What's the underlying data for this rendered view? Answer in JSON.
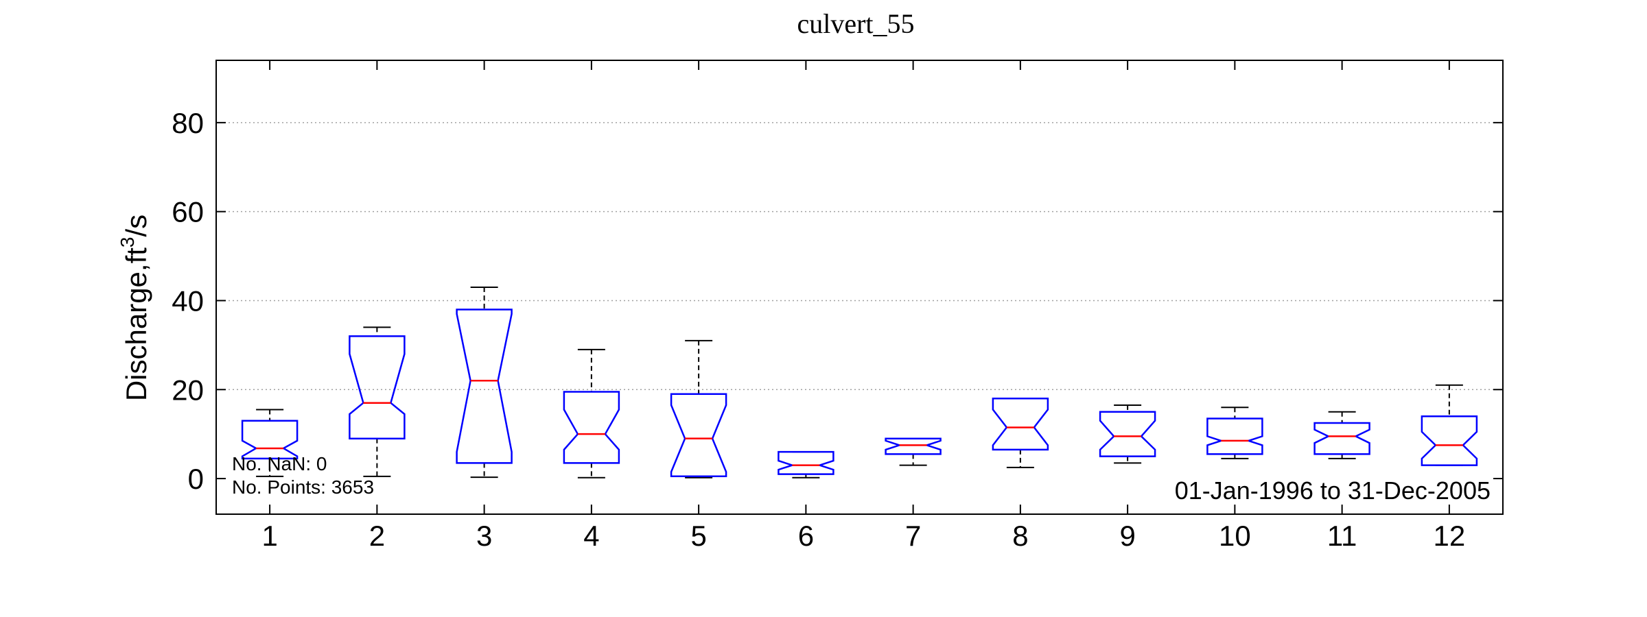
{
  "chart_data": {
    "type": "box",
    "title": "culvert_55",
    "ylabel_main": "Discharge,ft",
    "ylabel_sup": "3",
    "ylabel_tail": "/s",
    "ylim": [
      -8,
      94
    ],
    "yticks": [
      0,
      20,
      40,
      60,
      80
    ],
    "grid": "y-dotted",
    "categories": [
      "1",
      "2",
      "3",
      "4",
      "5",
      "6",
      "7",
      "8",
      "9",
      "10",
      "11",
      "12"
    ],
    "boxes": [
      {
        "min": 0.5,
        "q1": 4.5,
        "notch_lo": 5.0,
        "median": 6.8,
        "notch_hi": 8.5,
        "q3": 13.0,
        "max": 15.5
      },
      {
        "min": 0.5,
        "q1": 9.0,
        "notch_lo": 14.5,
        "median": 17.0,
        "notch_hi": 28.0,
        "q3": 32.0,
        "max": 34.0
      },
      {
        "min": 0.3,
        "q1": 3.5,
        "notch_lo": 6.0,
        "median": 22.0,
        "notch_hi": 37.0,
        "q3": 38.0,
        "max": 43.0
      },
      {
        "min": 0.2,
        "q1": 3.5,
        "notch_lo": 6.5,
        "median": 10.0,
        "notch_hi": 15.5,
        "q3": 19.5,
        "max": 29.0
      },
      {
        "min": 0.2,
        "q1": 0.5,
        "notch_lo": 1.5,
        "median": 9.0,
        "notch_hi": 16.5,
        "q3": 19.0,
        "max": 31.0
      },
      {
        "min": 0.2,
        "q1": 1.0,
        "notch_lo": 2.0,
        "median": 3.0,
        "notch_hi": 4.0,
        "q3": 6.0,
        "max": 6.0
      },
      {
        "min": 3.0,
        "q1": 5.5,
        "notch_lo": 6.5,
        "median": 7.5,
        "notch_hi": 8.5,
        "q3": 9.0,
        "max": 9.0
      },
      {
        "min": 2.5,
        "q1": 6.5,
        "notch_lo": 7.5,
        "median": 11.5,
        "notch_hi": 15.5,
        "q3": 18.0,
        "max": 18.0
      },
      {
        "min": 3.5,
        "q1": 5.0,
        "notch_lo": 6.5,
        "median": 9.5,
        "notch_hi": 13.0,
        "q3": 15.0,
        "max": 16.5
      },
      {
        "min": 4.5,
        "q1": 5.5,
        "notch_lo": 7.5,
        "median": 8.5,
        "notch_hi": 9.5,
        "q3": 13.5,
        "max": 16.0
      },
      {
        "min": 4.5,
        "q1": 5.5,
        "notch_lo": 8.0,
        "median": 9.5,
        "notch_hi": 11.0,
        "q3": 12.5,
        "max": 15.0
      },
      {
        "min": 3.0,
        "q1": 3.0,
        "notch_lo": 4.5,
        "median": 7.5,
        "notch_hi": 10.5,
        "q3": 14.0,
        "max": 21.0
      }
    ],
    "colors": {
      "box": "#0000ff",
      "median": "#ff0000",
      "whisker": "#000000",
      "grid": "#a0a0a0"
    },
    "annotations": {
      "nan_label": "No. NaN: 0",
      "points_label": "No. Points: 3653",
      "date_range": "01-Jan-1996 to 31-Dec-2005"
    }
  }
}
